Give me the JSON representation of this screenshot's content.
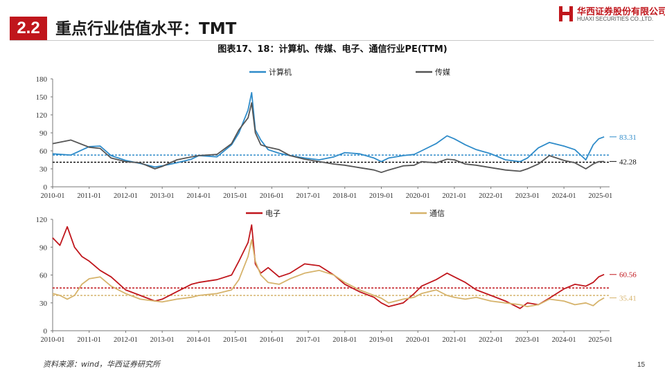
{
  "header": {
    "section_number": "2.2",
    "title": "重点行业估值水平：TMT",
    "logo_cn": "华西证券股份有限公司",
    "logo_en": "HUAXI SECURITIES CO.,LTD."
  },
  "figure_title": "图表17、18：计算机、传媒、电子、通信行业PE(TTM)",
  "source_note": "资料来源：wind，华西证券研究所",
  "page_number": "15",
  "colors": {
    "accent": "#c0161c",
    "computer": "#2e8bc9",
    "media": "#555555",
    "electronics": "#c0161c",
    "telecom": "#d6b36b"
  },
  "chart_data": [
    {
      "type": "line",
      "x_ticks": [
        "2010-01",
        "2011-01",
        "2012-01",
        "2013-01",
        "2014-01",
        "2015-01",
        "2016-01",
        "2017-01",
        "2018-01",
        "2019-01",
        "2020-01",
        "2021-01",
        "2022-01",
        "2023-01",
        "2024-01",
        "2025-01"
      ],
      "ylim": [
        0,
        180
      ],
      "y_ticks": [
        "0",
        "30",
        "60",
        "90",
        "120",
        "150",
        "180"
      ],
      "series": [
        {
          "name": "计算机",
          "color": "#2e8bc9",
          "x": [
            2010.0,
            2010.5,
            2011.0,
            2011.3,
            2011.6,
            2012.0,
            2012.4,
            2012.8,
            2013.0,
            2013.4,
            2013.8,
            2014.0,
            2014.5,
            2014.9,
            2015.1,
            2015.35,
            2015.45,
            2015.55,
            2015.7,
            2015.9,
            2016.2,
            2016.5,
            2016.9,
            2017.3,
            2017.7,
            2018.0,
            2018.4,
            2018.8,
            2019.0,
            2019.2,
            2019.6,
            2019.9,
            2020.1,
            2020.5,
            2020.8,
            2021.0,
            2021.3,
            2021.6,
            2022.0,
            2022.4,
            2022.8,
            2023.0,
            2023.3,
            2023.6,
            2024.0,
            2024.3,
            2024.6,
            2024.8,
            2024.95,
            2025.1
          ],
          "values": [
            55,
            53,
            67,
            68,
            52,
            44,
            39,
            33,
            35,
            40,
            46,
            52,
            50,
            70,
            90,
            128,
            157,
            95,
            78,
            62,
            56,
            52,
            48,
            45,
            50,
            57,
            55,
            48,
            42,
            48,
            52,
            54,
            60,
            72,
            85,
            80,
            70,
            62,
            55,
            45,
            42,
            48,
            65,
            74,
            68,
            62,
            45,
            70,
            80,
            83.31
          ]
        },
        {
          "name": "传媒",
          "color": "#555555",
          "x": [
            2010.0,
            2010.5,
            2011.0,
            2011.3,
            2011.6,
            2012.0,
            2012.4,
            2012.8,
            2013.0,
            2013.4,
            2013.8,
            2014.0,
            2014.5,
            2014.9,
            2015.1,
            2015.35,
            2015.45,
            2015.55,
            2015.7,
            2015.9,
            2016.2,
            2016.5,
            2016.9,
            2017.3,
            2017.7,
            2018.0,
            2018.4,
            2018.8,
            2019.0,
            2019.2,
            2019.6,
            2019.9,
            2020.1,
            2020.5,
            2020.8,
            2021.0,
            2021.3,
            2021.6,
            2022.0,
            2022.4,
            2022.8,
            2023.0,
            2023.3,
            2023.6,
            2024.0,
            2024.3,
            2024.6,
            2024.8,
            2024.95,
            2025.1
          ],
          "values": [
            72,
            78,
            66,
            64,
            48,
            42,
            40,
            30,
            34,
            45,
            50,
            52,
            54,
            72,
            95,
            115,
            140,
            90,
            70,
            66,
            62,
            52,
            46,
            42,
            38,
            36,
            32,
            28,
            24,
            28,
            35,
            36,
            42,
            40,
            46,
            45,
            38,
            36,
            32,
            28,
            26,
            30,
            38,
            52,
            44,
            40,
            30,
            38,
            42,
            42.28
          ]
        }
      ],
      "reference_lines": [
        {
          "value": 83.31,
          "label": "83.31",
          "color": "#2e8bc9"
        },
        {
          "value": 42.28,
          "label": "42.28",
          "color": "#111111"
        }
      ],
      "mean_lines": [
        {
          "value": 53,
          "color": "#2e8bc9"
        },
        {
          "value": 41,
          "color": "#111111"
        }
      ]
    },
    {
      "type": "line",
      "x_ticks": [
        "2010-01",
        "2011-01",
        "2012-01",
        "2013-01",
        "2014-01",
        "2015-01",
        "2016-01",
        "2017-01",
        "2018-01",
        "2019-01",
        "2020-01",
        "2021-01",
        "2022-01",
        "2023-01",
        "2024-01",
        "2025-01"
      ],
      "ylim": [
        0,
        120
      ],
      "y_ticks": [
        "0",
        "30",
        "60",
        "90",
        "120"
      ],
      "series": [
        {
          "name": "电子",
          "color": "#c0161c",
          "x": [
            2010.0,
            2010.2,
            2010.4,
            2010.6,
            2010.8,
            2011.0,
            2011.3,
            2011.6,
            2012.0,
            2012.4,
            2012.8,
            2013.0,
            2013.4,
            2013.8,
            2014.0,
            2014.5,
            2014.9,
            2015.1,
            2015.35,
            2015.45,
            2015.55,
            2015.7,
            2015.9,
            2016.2,
            2016.5,
            2016.9,
            2017.3,
            2017.7,
            2018.0,
            2018.4,
            2018.8,
            2019.0,
            2019.2,
            2019.6,
            2019.9,
            2020.1,
            2020.5,
            2020.8,
            2021.0,
            2021.3,
            2021.6,
            2022.0,
            2022.4,
            2022.8,
            2023.0,
            2023.3,
            2023.6,
            2024.0,
            2024.3,
            2024.6,
            2024.8,
            2024.95,
            2025.1
          ],
          "values": [
            100,
            92,
            112,
            90,
            80,
            75,
            65,
            58,
            44,
            38,
            32,
            34,
            42,
            50,
            52,
            55,
            60,
            75,
            95,
            114,
            72,
            62,
            68,
            58,
            62,
            72,
            70,
            60,
            50,
            42,
            36,
            30,
            26,
            30,
            40,
            48,
            55,
            62,
            58,
            52,
            44,
            38,
            32,
            24,
            30,
            28,
            35,
            45,
            50,
            48,
            52,
            58,
            60.56
          ]
        },
        {
          "name": "通信",
          "color": "#d6b36b",
          "x": [
            2010.0,
            2010.2,
            2010.4,
            2010.6,
            2010.8,
            2011.0,
            2011.3,
            2011.6,
            2012.0,
            2012.4,
            2012.8,
            2013.0,
            2013.4,
            2013.8,
            2014.0,
            2014.5,
            2014.9,
            2015.1,
            2015.35,
            2015.45,
            2015.55,
            2015.7,
            2015.9,
            2016.2,
            2016.5,
            2016.9,
            2017.3,
            2017.7,
            2018.0,
            2018.4,
            2018.8,
            2019.0,
            2019.2,
            2019.6,
            2019.9,
            2020.1,
            2020.5,
            2020.8,
            2021.0,
            2021.3,
            2021.6,
            2022.0,
            2022.4,
            2022.8,
            2023.0,
            2023.3,
            2023.6,
            2024.0,
            2024.3,
            2024.6,
            2024.8,
            2024.95,
            2025.1
          ],
          "values": [
            40,
            38,
            34,
            38,
            50,
            56,
            58,
            48,
            40,
            34,
            32,
            31,
            34,
            36,
            38,
            40,
            44,
            55,
            80,
            98,
            75,
            60,
            52,
            50,
            56,
            62,
            65,
            60,
            52,
            44,
            38,
            35,
            30,
            34,
            36,
            40,
            44,
            38,
            36,
            34,
            36,
            32,
            30,
            28,
            26,
            28,
            34,
            32,
            28,
            30,
            27,
            32,
            35.41
          ]
        }
      ],
      "reference_lines": [
        {
          "value": 60.56,
          "label": "60.56",
          "color": "#c0161c"
        },
        {
          "value": 35.41,
          "label": "35.41",
          "color": "#d6b36b"
        }
      ],
      "mean_lines": [
        {
          "value": 46,
          "color": "#c0161c"
        },
        {
          "value": 38,
          "color": "#d6b36b"
        }
      ]
    }
  ]
}
